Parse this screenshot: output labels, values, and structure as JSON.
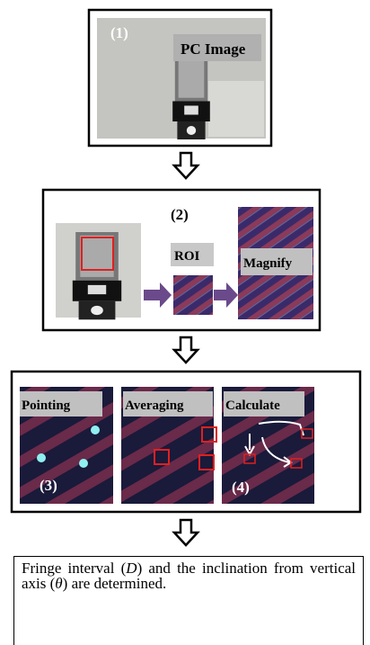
{
  "step1": {
    "number": "(1)",
    "caption": "PC Image"
  },
  "step2": {
    "number": "(2)",
    "roi": "ROI",
    "magnify": "Magnify"
  },
  "step3": {
    "pointing": "Pointing",
    "averaging": "Averaging",
    "calculate": "Calculate",
    "number3": "(3)",
    "number4": "(4)"
  },
  "result": {
    "parts": [
      "Fringe interval (",
      "D",
      ") and the inclination from vertical axis (",
      "θ",
      ") are determined."
    ]
  }
}
